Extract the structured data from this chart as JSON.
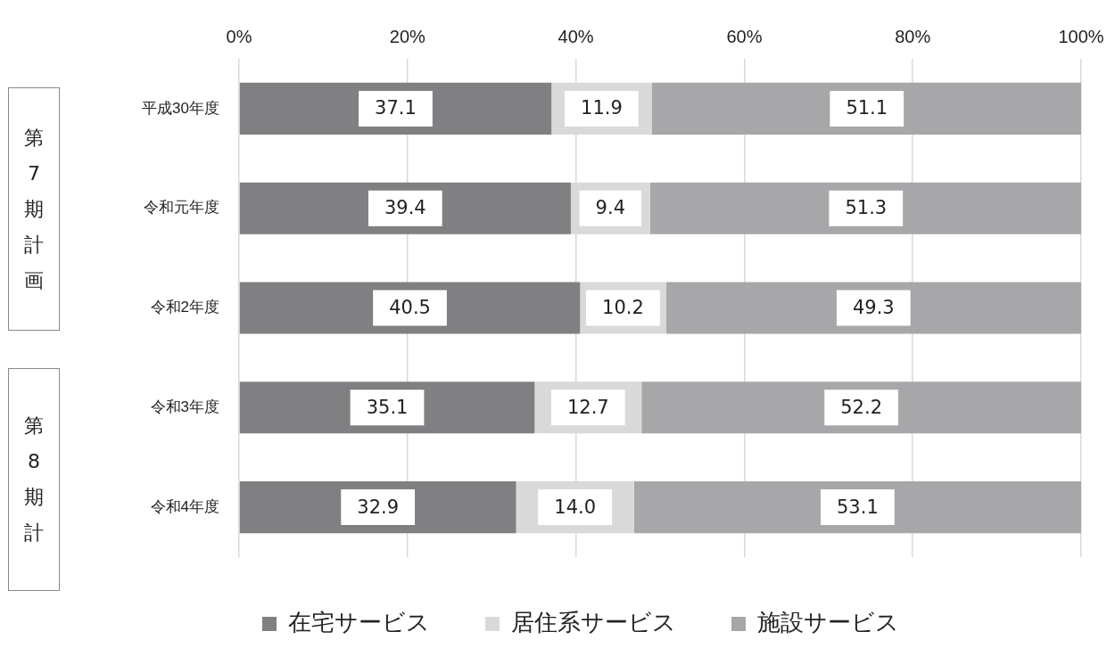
{
  "chart_data": {
    "type": "bar",
    "orientation": "horizontal",
    "stacked": true,
    "categories": [
      "平成30年度",
      "令和元年度",
      "令和2年度",
      "令和3年度",
      "令和4年度"
    ],
    "series": [
      {
        "name": "在宅サービス",
        "color": "#808083",
        "values": [
          37.1,
          39.4,
          40.5,
          35.1,
          32.9
        ],
        "value_labels": [
          "37.1",
          "39.4",
          "40.5",
          "35.1",
          "32.9"
        ]
      },
      {
        "name": "居住系サービス",
        "color": "#d9d9d9",
        "values": [
          11.9,
          9.4,
          10.2,
          12.7,
          14.0
        ],
        "value_labels": [
          "11.9",
          "9.4",
          "10.2",
          "12.7",
          "14.0"
        ]
      },
      {
        "name": "施設サービス",
        "color": "#a7a7aa",
        "values": [
          51.1,
          51.3,
          49.3,
          52.2,
          53.1
        ],
        "value_labels": [
          "51.1",
          "51.3",
          "49.3",
          "52.2",
          "53.1"
        ]
      }
    ],
    "xlim": [
      0,
      100
    ],
    "xticks": [
      {
        "value": 0,
        "label": "0%"
      },
      {
        "value": 20,
        "label": "20%"
      },
      {
        "value": 40,
        "label": "40%"
      },
      {
        "value": 60,
        "label": "60%"
      },
      {
        "value": 80,
        "label": "80%"
      },
      {
        "value": 100,
        "label": "100%"
      }
    ],
    "grid": "x",
    "legend": "bottom",
    "annotations": [
      "第7期計画",
      "第8期計"
    ]
  }
}
